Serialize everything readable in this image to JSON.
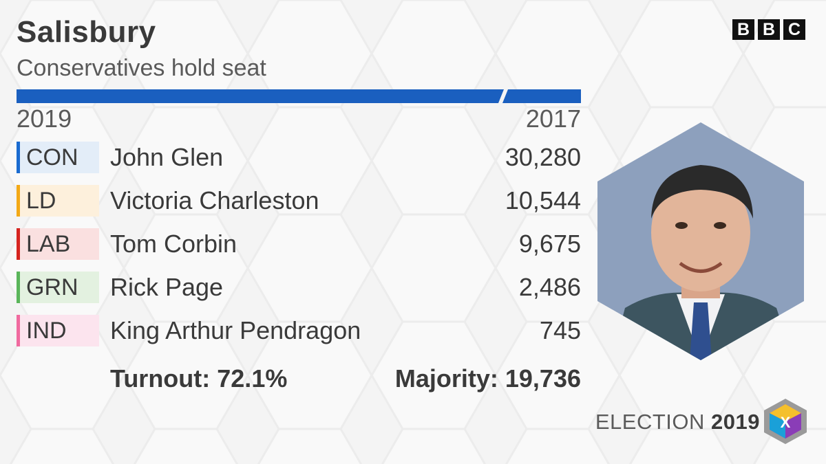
{
  "header": {
    "constituency": "Salisbury",
    "result": "Conservatives hold seat",
    "logo_letters": [
      "B",
      "B",
      "C"
    ]
  },
  "bar": {
    "winning_party_color": "#1a5fbf"
  },
  "years": {
    "current": "2019",
    "previous": "2017"
  },
  "candidates": [
    {
      "party": "CON",
      "name": "John Glen",
      "votes": "30,280",
      "color": "#1a6bd0",
      "tint": "#e3edf8"
    },
    {
      "party": "LD",
      "name": "Victoria Charleston",
      "votes": "10,544",
      "color": "#f3a916",
      "tint": "#fdf0dc"
    },
    {
      "party": "LAB",
      "name": "Tom Corbin",
      "votes": "9,675",
      "color": "#d6241f",
      "tint": "#fae0e0"
    },
    {
      "party": "GRN",
      "name": "Rick Page",
      "votes": "2,486",
      "color": "#5ab55a",
      "tint": "#e3f1e0"
    },
    {
      "party": "IND",
      "name": "King Arthur Pendragon",
      "votes": "745",
      "color": "#f06a9f",
      "tint": "#fce4ee"
    }
  ],
  "summary": {
    "turnout": "Turnout: 72.1%",
    "majority": "Majority: 19,736"
  },
  "portrait": {
    "icon": "candidate-portrait"
  },
  "branding": {
    "election_word": "ELECTION",
    "election_year": "2019",
    "cube_letter": "X"
  }
}
